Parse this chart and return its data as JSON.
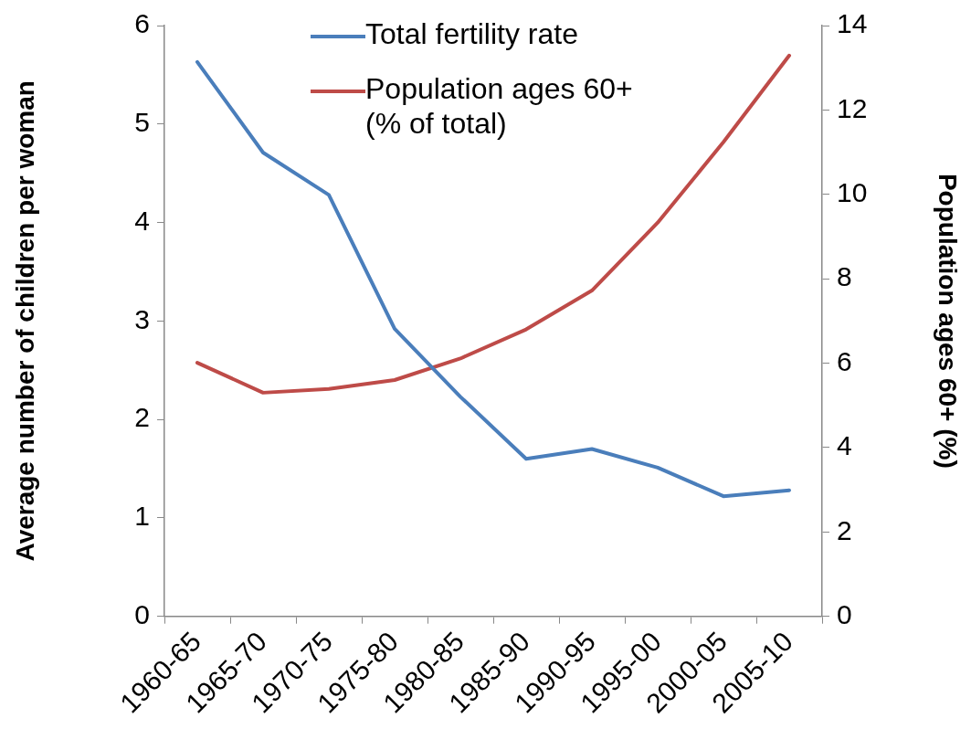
{
  "chart_data": {
    "type": "line",
    "categories": [
      "1960-65",
      "1965-70",
      "1970-75",
      "1975-80",
      "1980-85",
      "1985-90",
      "1990-95",
      "1995-00",
      "2000-05",
      "2005-10"
    ],
    "ylabel": "Average number of children per woman",
    "y2label": "Population ages 60+ (%)",
    "ylim": [
      0,
      6
    ],
    "yticks": [
      0,
      1,
      2,
      3,
      4,
      5,
      6
    ],
    "y2lim": [
      0,
      14
    ],
    "y2ticks": [
      0,
      2,
      4,
      6,
      8,
      10,
      12,
      14
    ],
    "series": [
      {
        "name": "Total fertility rate",
        "color": "#4a7ebb",
        "values": [
          5.63,
          4.71,
          4.28,
          2.92,
          2.23,
          1.6,
          1.7,
          1.51,
          1.22,
          1.28
        ]
      },
      {
        "name": "Population ages 60+ (% of total)",
        "color": "#be4b48",
        "axis": "y2",
        "values": [
          6.01,
          5.3,
          5.39,
          5.6,
          6.11,
          6.8,
          7.72,
          9.33,
          11.24,
          13.29
        ]
      }
    ],
    "grid": false,
    "legend": "top",
    "marker": "none",
    "line_style": "solid"
  }
}
